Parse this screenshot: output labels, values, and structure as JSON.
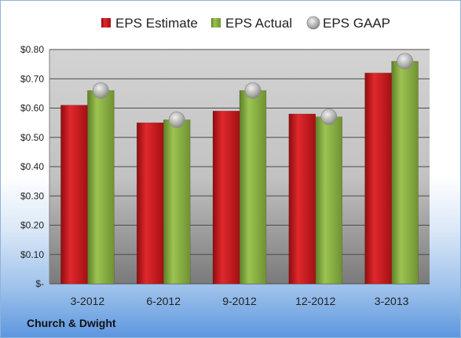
{
  "company": "Church & Dwight",
  "chart_data": {
    "type": "bar",
    "categories": [
      "3-2012",
      "6-2012",
      "9-2012",
      "12-2012",
      "3-2013"
    ],
    "series": [
      {
        "name": "EPS Estimate",
        "values": [
          0.61,
          0.55,
          0.59,
          0.58,
          0.72
        ],
        "color": "#c0181c",
        "kind": "bar"
      },
      {
        "name": "EPS Actual",
        "values": [
          0.66,
          0.56,
          0.66,
          0.57,
          0.76
        ],
        "color": "#8eb442",
        "kind": "bar"
      },
      {
        "name": "EPS GAAP",
        "values": [
          0.66,
          0.56,
          0.66,
          0.57,
          0.76
        ],
        "color": "#a6a6a6",
        "kind": "marker"
      }
    ],
    "ylim": [
      0,
      0.8
    ],
    "yticks": [
      0,
      0.1,
      0.2,
      0.3,
      0.4,
      0.5,
      0.6,
      0.7,
      0.8
    ],
    "ytick_labels": [
      "$-",
      "$0.10",
      "$0.20",
      "$0.30",
      "$0.40",
      "$0.50",
      "$0.60",
      "$0.70",
      "$0.80"
    ],
    "legend_position": "top",
    "grid": true
  }
}
